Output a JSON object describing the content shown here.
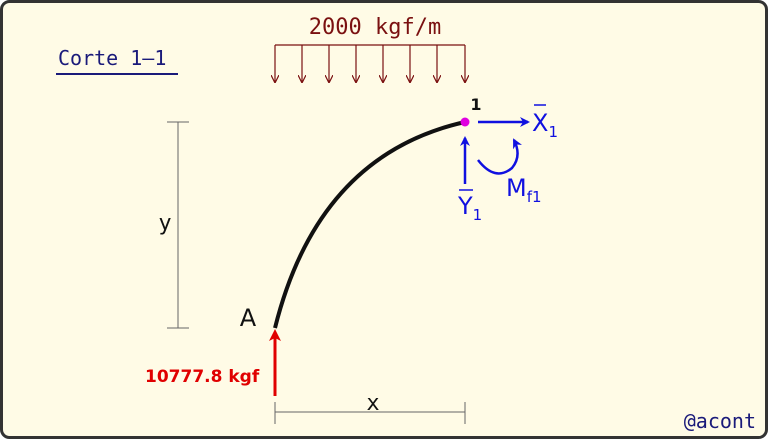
{
  "section_title": "Corte 1–1",
  "distributed_load": "2000 kgf/m",
  "node": "1",
  "support": "A",
  "reaction": "10777.8 kgf",
  "forces": [
    {
      "symbol": "X",
      "subscript": "1"
    },
    {
      "symbol": "Y",
      "subscript": "1"
    },
    {
      "symbol": "M",
      "subscript": "f1"
    }
  ],
  "dimensions": {
    "vertical": "y",
    "horizontal": "x"
  },
  "watermark": "@acont"
}
